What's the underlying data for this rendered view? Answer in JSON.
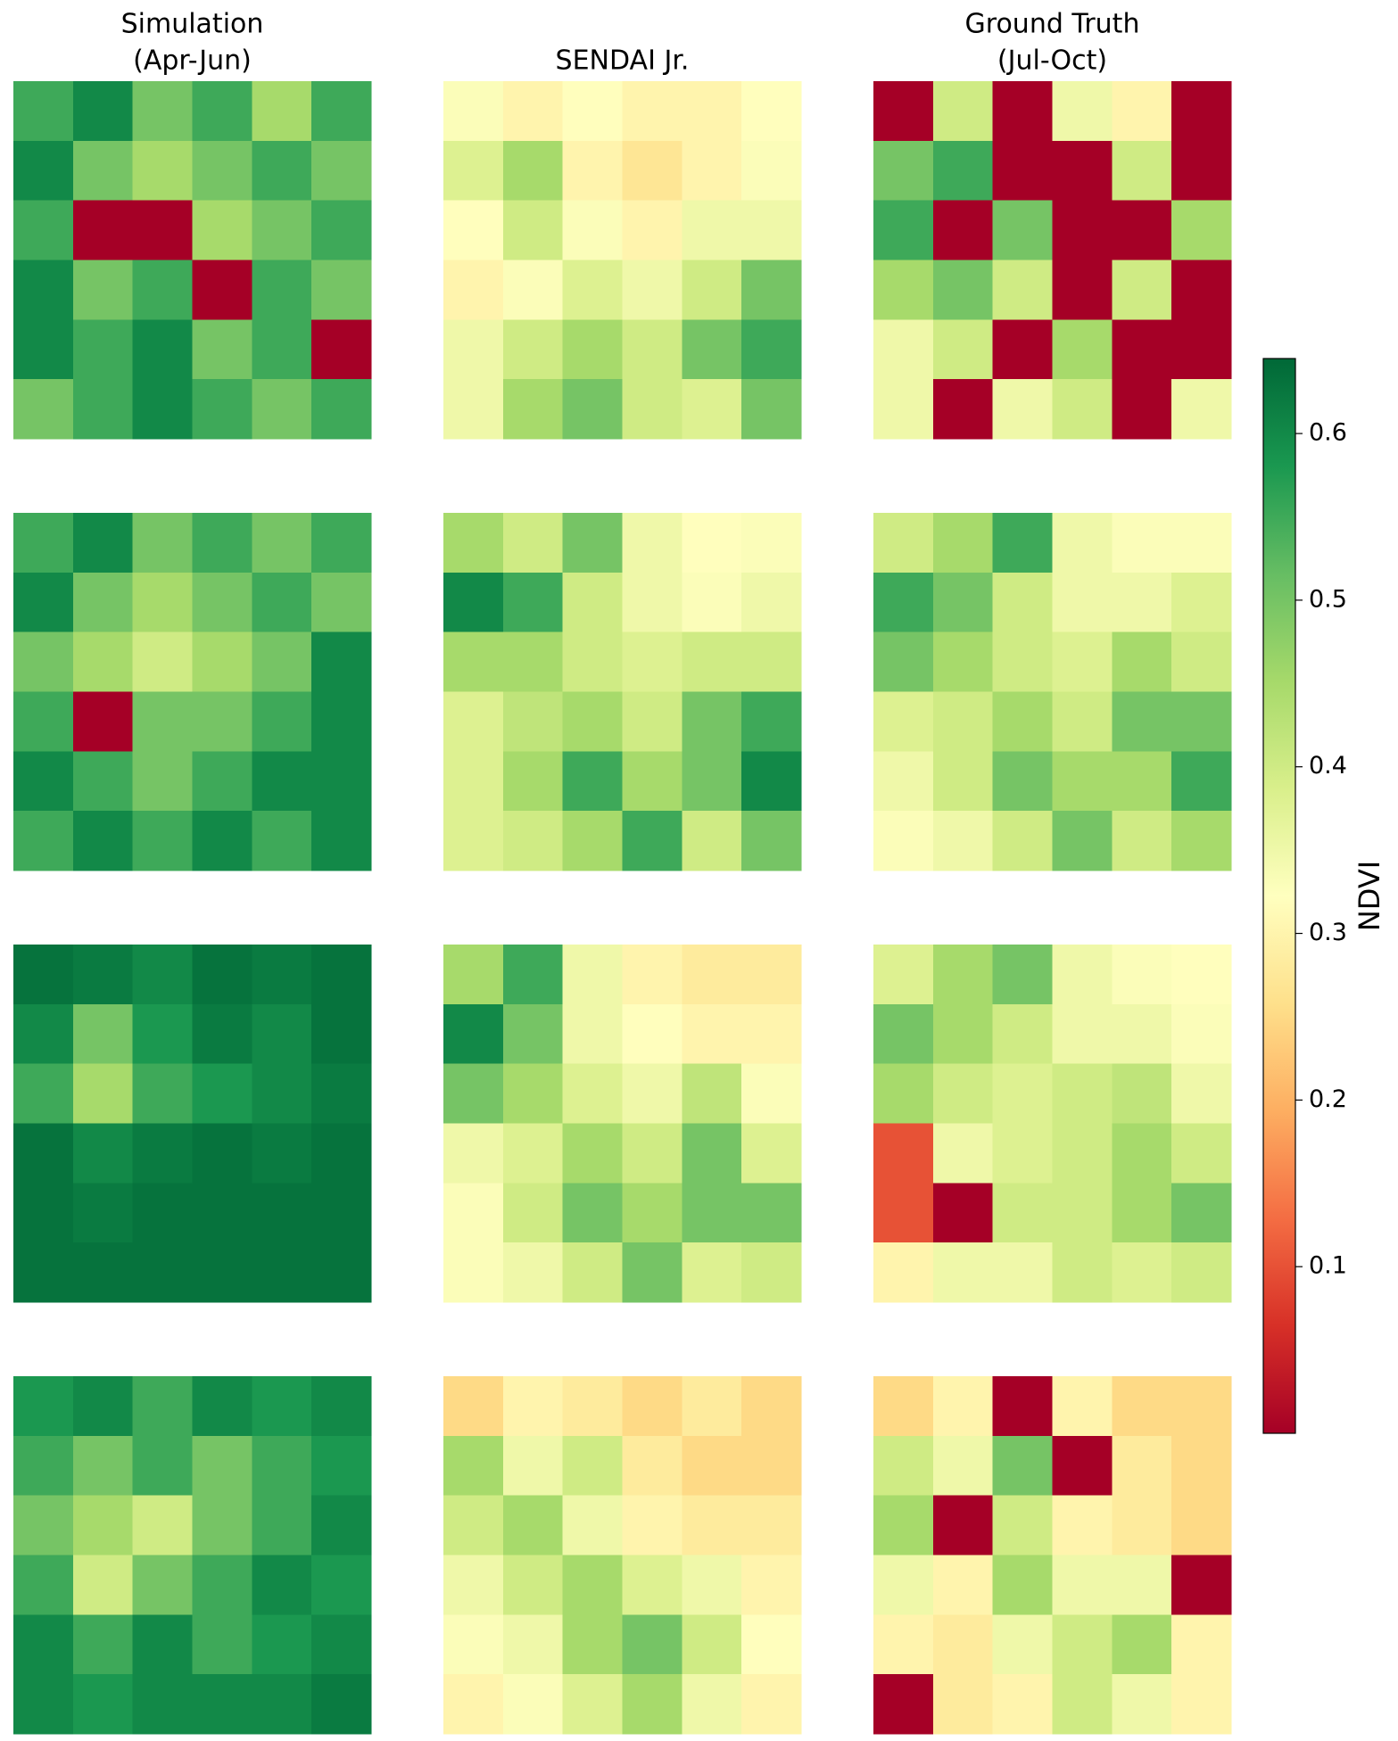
{
  "chart_data": {
    "type": "heatmap",
    "column_titles": [
      [
        "Simulation",
        "(Apr-Jun)"
      ],
      [
        "SENDAI Jr."
      ],
      [
        "Ground Truth",
        "(Jul-Oct)"
      ]
    ],
    "colors": [
      "#a50026",
      "#d73027",
      "#f46d43",
      "#fdae61",
      "#fee08b",
      "#ffffbf",
      "#d9ef8b",
      "#a6d96a",
      "#66bd63",
      "#1a9850",
      "#006837"
    ],
    "panels": [
      [
        [
          [
            0.55,
            0.6,
            0.5,
            0.55,
            0.45,
            0.55
          ],
          [
            0.6,
            0.5,
            0.45,
            0.5,
            0.55,
            0.5
          ],
          [
            0.55,
            0,
            0,
            0.45,
            0.5,
            0.55
          ],
          [
            0.6,
            0.5,
            0.55,
            0,
            0.55,
            0.5
          ],
          [
            0.6,
            0.55,
            0.6,
            0.5,
            0.55,
            0
          ],
          [
            0.5,
            0.55,
            0.6,
            0.55,
            0.5,
            0.55
          ]
        ],
        [
          [
            0.33,
            0.3,
            0.32,
            0.3,
            0.3,
            0.32
          ],
          [
            0.38,
            0.45,
            0.3,
            0.27,
            0.3,
            0.33
          ],
          [
            0.32,
            0.4,
            0.33,
            0.3,
            0.35,
            0.35
          ],
          [
            0.3,
            0.33,
            0.38,
            0.35,
            0.4,
            0.5
          ],
          [
            0.35,
            0.4,
            0.45,
            0.4,
            0.5,
            0.55
          ],
          [
            0.35,
            0.45,
            0.5,
            0.4,
            0.38,
            0.5
          ]
        ],
        [
          [
            0,
            0.4,
            0,
            0.35,
            0.3,
            0
          ],
          [
            0.5,
            0.55,
            0,
            0,
            0.4,
            0
          ],
          [
            0.55,
            0,
            0.5,
            0,
            0,
            0.45
          ],
          [
            0.45,
            0.5,
            0.4,
            0,
            0.4,
            0
          ],
          [
            0.35,
            0.4,
            0,
            0.45,
            0,
            0
          ],
          [
            0.35,
            0,
            0.35,
            0.4,
            0,
            0.35
          ]
        ]
      ],
      [
        [
          [
            0.55,
            0.6,
            0.5,
            0.55,
            0.5,
            0.55
          ],
          [
            0.6,
            0.5,
            0.45,
            0.5,
            0.55,
            0.5
          ],
          [
            0.5,
            0.45,
            0.4,
            0.45,
            0.5,
            0.6
          ],
          [
            0.55,
            0,
            0.5,
            0.5,
            0.55,
            0.6
          ],
          [
            0.6,
            0.55,
            0.5,
            0.55,
            0.6,
            0.6
          ],
          [
            0.55,
            0.6,
            0.55,
            0.6,
            0.55,
            0.6
          ]
        ],
        [
          [
            0.45,
            0.4,
            0.5,
            0.35,
            0.32,
            0.33
          ],
          [
            0.6,
            0.55,
            0.4,
            0.35,
            0.33,
            0.35
          ],
          [
            0.45,
            0.45,
            0.4,
            0.38,
            0.4,
            0.4
          ],
          [
            0.38,
            0.42,
            0.45,
            0.4,
            0.5,
            0.55
          ],
          [
            0.38,
            0.45,
            0.55,
            0.45,
            0.5,
            0.6
          ],
          [
            0.38,
            0.4,
            0.45,
            0.55,
            0.4,
            0.5
          ]
        ],
        [
          [
            0.4,
            0.45,
            0.55,
            0.35,
            0.33,
            0.33
          ],
          [
            0.55,
            0.5,
            0.4,
            0.35,
            0.35,
            0.38
          ],
          [
            0.5,
            0.45,
            0.4,
            0.38,
            0.45,
            0.4
          ],
          [
            0.38,
            0.4,
            0.45,
            0.4,
            0.5,
            0.5
          ],
          [
            0.35,
            0.4,
            0.5,
            0.45,
            0.45,
            0.55
          ],
          [
            0.33,
            0.35,
            0.4,
            0.5,
            0.4,
            0.45
          ]
        ]
      ],
      [
        [
          [
            0.63,
            0.62,
            0.6,
            0.63,
            0.62,
            0.63
          ],
          [
            0.6,
            0.5,
            0.58,
            0.62,
            0.6,
            0.63
          ],
          [
            0.55,
            0.45,
            0.55,
            0.58,
            0.6,
            0.62
          ],
          [
            0.63,
            0.6,
            0.62,
            0.63,
            0.62,
            0.63
          ],
          [
            0.63,
            0.62,
            0.63,
            0.63,
            0.63,
            0.63
          ],
          [
            0.63,
            0.63,
            0.63,
            0.63,
            0.63,
            0.63
          ]
        ],
        [
          [
            0.45,
            0.55,
            0.35,
            0.3,
            0.28,
            0.28
          ],
          [
            0.6,
            0.5,
            0.35,
            0.32,
            0.3,
            0.3
          ],
          [
            0.5,
            0.45,
            0.38,
            0.35,
            0.42,
            0.33
          ],
          [
            0.35,
            0.38,
            0.45,
            0.4,
            0.5,
            0.38
          ],
          [
            0.33,
            0.4,
            0.5,
            0.45,
            0.5,
            0.5
          ],
          [
            0.33,
            0.35,
            0.4,
            0.5,
            0.38,
            0.4
          ]
        ],
        [
          [
            0.38,
            0.45,
            0.5,
            0.35,
            0.33,
            0.32
          ],
          [
            0.5,
            0.45,
            0.4,
            0.35,
            0.35,
            0.33
          ],
          [
            0.45,
            0.4,
            0.38,
            0.4,
            0.42,
            0.35
          ],
          [
            0.1,
            0.35,
            0.38,
            0.4,
            0.45,
            0.4
          ],
          [
            0.1,
            0,
            0.4,
            0.4,
            0.45,
            0.5
          ],
          [
            0.3,
            0.35,
            0.35,
            0.4,
            0.38,
            0.4
          ]
        ]
      ],
      [
        [
          [
            0.58,
            0.6,
            0.55,
            0.6,
            0.58,
            0.6
          ],
          [
            0.55,
            0.5,
            0.55,
            0.5,
            0.55,
            0.58
          ],
          [
            0.5,
            0.45,
            0.4,
            0.5,
            0.55,
            0.6
          ],
          [
            0.55,
            0.4,
            0.5,
            0.55,
            0.6,
            0.58
          ],
          [
            0.6,
            0.55,
            0.6,
            0.55,
            0.58,
            0.6
          ],
          [
            0.6,
            0.58,
            0.6,
            0.6,
            0.6,
            0.62
          ]
        ],
        [
          [
            0.25,
            0.3,
            0.28,
            0.25,
            0.28,
            0.25
          ],
          [
            0.45,
            0.35,
            0.4,
            0.28,
            0.25,
            0.25
          ],
          [
            0.4,
            0.45,
            0.35,
            0.3,
            0.28,
            0.28
          ],
          [
            0.35,
            0.4,
            0.45,
            0.38,
            0.35,
            0.3
          ],
          [
            0.33,
            0.35,
            0.45,
            0.5,
            0.4,
            0.32
          ],
          [
            0.3,
            0.33,
            0.38,
            0.45,
            0.35,
            0.3
          ]
        ],
        [
          [
            0.25,
            0.3,
            0,
            0.3,
            0.25,
            0.25
          ],
          [
            0.4,
            0.35,
            0.5,
            0,
            0.28,
            0.25
          ],
          [
            0.45,
            0,
            0.4,
            0.3,
            0.28,
            0.25
          ],
          [
            0.35,
            0.3,
            0.45,
            0.35,
            0.35,
            0
          ],
          [
            0.3,
            0.28,
            0.35,
            0.4,
            0.45,
            0.3
          ],
          [
            0,
            0.28,
            0.3,
            0.4,
            0.35,
            0.3
          ]
        ]
      ]
    ],
    "colorbar": {
      "label": "NDVI",
      "ylim": [
        0,
        0.645
      ],
      "yticks": [
        0.1,
        0.2,
        0.3,
        0.4,
        0.5,
        0.6
      ]
    }
  }
}
